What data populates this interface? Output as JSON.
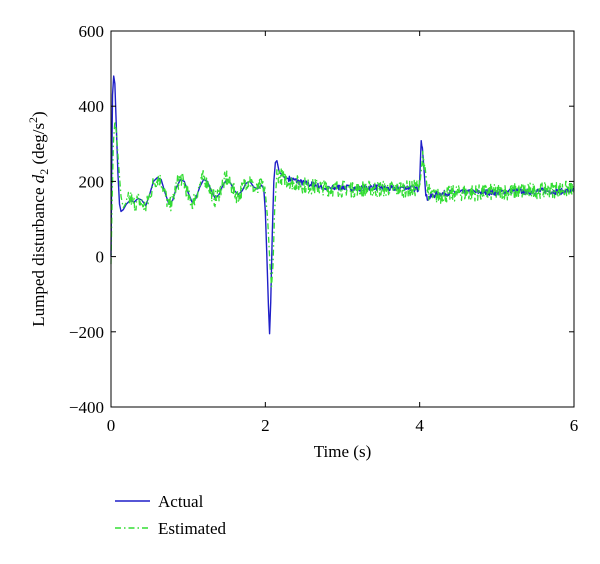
{
  "chart_data": {
    "type": "line",
    "title": "",
    "xlabel": "Time (s)",
    "ylabel": {
      "prefix": "Lumped disturbance ",
      "var": "d",
      "sub": "2",
      "unit_open": " (deg/s",
      "sup": "2",
      "unit_close": ")"
    },
    "xlim": [
      0,
      6
    ],
    "ylim": [
      -400,
      600
    ],
    "xticks": [
      0,
      2,
      4,
      6
    ],
    "yticks": [
      -400,
      -200,
      0,
      200,
      400,
      600
    ],
    "grid": false,
    "legend_position": "below-left",
    "series": [
      {
        "name": "Actual",
        "color": "#1f1fc8",
        "style": "solid",
        "points": [
          [
            0,
            0
          ],
          [
            0.01,
            250
          ],
          [
            0.02,
            430
          ],
          [
            0.035,
            480
          ],
          [
            0.05,
            460
          ],
          [
            0.07,
            340
          ],
          [
            0.09,
            220
          ],
          [
            0.11,
            140
          ],
          [
            0.13,
            120
          ],
          [
            0.16,
            125
          ],
          [
            0.2,
            140
          ],
          [
            0.25,
            150
          ],
          [
            0.3,
            145
          ],
          [
            0.35,
            155
          ],
          [
            0.4,
            150
          ],
          [
            0.45,
            135
          ],
          [
            0.5,
            165
          ],
          [
            0.55,
            200
          ],
          [
            0.6,
            210
          ],
          [
            0.65,
            205
          ],
          [
            0.7,
            170
          ],
          [
            0.75,
            140
          ],
          [
            0.8,
            150
          ],
          [
            0.85,
            185
          ],
          [
            0.9,
            205
          ],
          [
            0.95,
            200
          ],
          [
            1.0,
            170
          ],
          [
            1.05,
            145
          ],
          [
            1.1,
            155
          ],
          [
            1.15,
            185
          ],
          [
            1.2,
            205
          ],
          [
            1.25,
            200
          ],
          [
            1.3,
            175
          ],
          [
            1.35,
            155
          ],
          [
            1.4,
            165
          ],
          [
            1.45,
            190
          ],
          [
            1.5,
            205
          ],
          [
            1.55,
            195
          ],
          [
            1.6,
            175
          ],
          [
            1.65,
            165
          ],
          [
            1.7,
            175
          ],
          [
            1.75,
            195
          ],
          [
            1.8,
            200
          ],
          [
            1.85,
            185
          ],
          [
            1.9,
            180
          ],
          [
            1.95,
            190
          ],
          [
            1.98,
            180
          ],
          [
            2.0,
            120
          ],
          [
            2.02,
            0
          ],
          [
            2.04,
            -130
          ],
          [
            2.055,
            -205
          ],
          [
            2.07,
            -120
          ],
          [
            2.09,
            60
          ],
          [
            2.11,
            200
          ],
          [
            2.13,
            250
          ],
          [
            2.15,
            255
          ],
          [
            2.18,
            225
          ],
          [
            2.25,
            210
          ],
          [
            2.35,
            205
          ],
          [
            2.5,
            195
          ],
          [
            2.65,
            190
          ],
          [
            2.8,
            180
          ],
          [
            3.0,
            185
          ],
          [
            3.2,
            180
          ],
          [
            3.4,
            185
          ],
          [
            3.6,
            180
          ],
          [
            3.8,
            185
          ],
          [
            3.98,
            180
          ],
          [
            4.0,
            200
          ],
          [
            4.02,
            315
          ],
          [
            4.035,
            290
          ],
          [
            4.06,
            220
          ],
          [
            4.08,
            160
          ],
          [
            4.1,
            155
          ],
          [
            4.2,
            165
          ],
          [
            4.4,
            170
          ],
          [
            4.6,
            170
          ],
          [
            4.8,
            172
          ],
          [
            5.0,
            170
          ],
          [
            5.2,
            175
          ],
          [
            5.4,
            172
          ],
          [
            5.6,
            175
          ],
          [
            5.8,
            173
          ],
          [
            6.0,
            175
          ]
        ]
      },
      {
        "name": "Estimated",
        "color": "#33dd33",
        "style": "dashdot",
        "points": [
          [
            0,
            -20
          ],
          [
            0.01,
            100
          ],
          [
            0.03,
            300
          ],
          [
            0.05,
            360
          ],
          [
            0.07,
            330
          ],
          [
            0.1,
            240
          ],
          [
            0.13,
            160
          ],
          [
            0.16,
            130
          ],
          [
            0.2,
            145
          ],
          [
            0.25,
            155
          ],
          [
            0.3,
            140
          ],
          [
            0.35,
            150
          ],
          [
            0.4,
            140
          ],
          [
            0.45,
            130
          ],
          [
            0.5,
            160
          ],
          [
            0.55,
            195
          ],
          [
            0.6,
            210
          ],
          [
            0.65,
            200
          ],
          [
            0.7,
            165
          ],
          [
            0.75,
            135
          ],
          [
            0.8,
            150
          ],
          [
            0.85,
            190
          ],
          [
            0.9,
            210
          ],
          [
            0.95,
            195
          ],
          [
            1.0,
            160
          ],
          [
            1.05,
            140
          ],
          [
            1.1,
            160
          ],
          [
            1.15,
            190
          ],
          [
            1.2,
            210
          ],
          [
            1.25,
            195
          ],
          [
            1.3,
            170
          ],
          [
            1.35,
            150
          ],
          [
            1.4,
            170
          ],
          [
            1.45,
            195
          ],
          [
            1.5,
            210
          ],
          [
            1.55,
            190
          ],
          [
            1.6,
            170
          ],
          [
            1.65,
            160
          ],
          [
            1.7,
            180
          ],
          [
            1.75,
            200
          ],
          [
            1.8,
            205
          ],
          [
            1.85,
            180
          ],
          [
            1.9,
            175
          ],
          [
            1.95,
            195
          ],
          [
            2.0,
            170
          ],
          [
            2.03,
            100
          ],
          [
            2.06,
            -20
          ],
          [
            2.08,
            -80
          ],
          [
            2.1,
            -20
          ],
          [
            2.12,
            120
          ],
          [
            2.15,
            220
          ],
          [
            2.2,
            215
          ],
          [
            2.3,
            200
          ],
          [
            2.5,
            190
          ],
          [
            2.7,
            185
          ],
          [
            3.0,
            180
          ],
          [
            3.3,
            180
          ],
          [
            3.6,
            180
          ],
          [
            3.9,
            180
          ],
          [
            4.0,
            185
          ],
          [
            4.04,
            270
          ],
          [
            4.07,
            240
          ],
          [
            4.1,
            175
          ],
          [
            4.2,
            160
          ],
          [
            4.5,
            170
          ],
          [
            4.8,
            170
          ],
          [
            5.1,
            172
          ],
          [
            5.4,
            175
          ],
          [
            5.7,
            178
          ],
          [
            6.0,
            180
          ]
        ]
      }
    ]
  }
}
